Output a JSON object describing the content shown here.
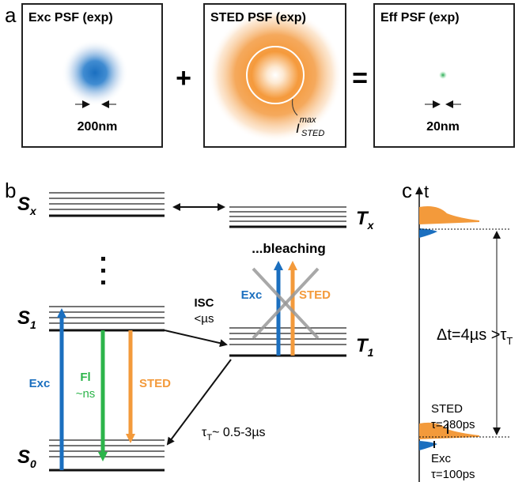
{
  "panel_a": {
    "label": "a",
    "images": [
      {
        "title": "Exc PSF (exp)",
        "scale": "200nm"
      },
      {
        "title": "STED PSF (exp)",
        "annotation": {
          "symbol": "I",
          "superscript": "max",
          "subscript": "STED"
        }
      },
      {
        "title": "Eff PSF (exp)",
        "scale": "20nm"
      }
    ],
    "operators": [
      "+",
      "="
    ]
  },
  "panel_b": {
    "label": "b",
    "levels": {
      "sx": {
        "symbol": "S",
        "subscript": "x"
      },
      "tx": {
        "symbol": "T",
        "subscript": "x"
      },
      "s1": {
        "symbol": "S",
        "subscript": "1"
      },
      "t1": {
        "symbol": "T",
        "subscript": "1"
      },
      "s0": {
        "symbol": "S",
        "subscript": "0"
      }
    },
    "bleaching": "...bleaching",
    "isc": {
      "name": "ISC",
      "time": "<µs"
    },
    "blocked": {
      "exc": "Exc",
      "sted": "STED"
    },
    "exc": "Exc",
    "fl": {
      "name": "Fl",
      "time": "~ns"
    },
    "sted": "STED",
    "triplet_decay": {
      "symbol": "τ",
      "subscript": "T",
      "text": "~ 0.5-3µs"
    }
  },
  "panel_c": {
    "label": "c",
    "axis": "t",
    "interval": {
      "text": "Δt=4µs >τ",
      "subscript": "T"
    },
    "sted": {
      "name": "STED",
      "duration": "τ=280ps"
    },
    "exc": {
      "name": "Exc",
      "duration": "τ=100ps"
    }
  }
}
